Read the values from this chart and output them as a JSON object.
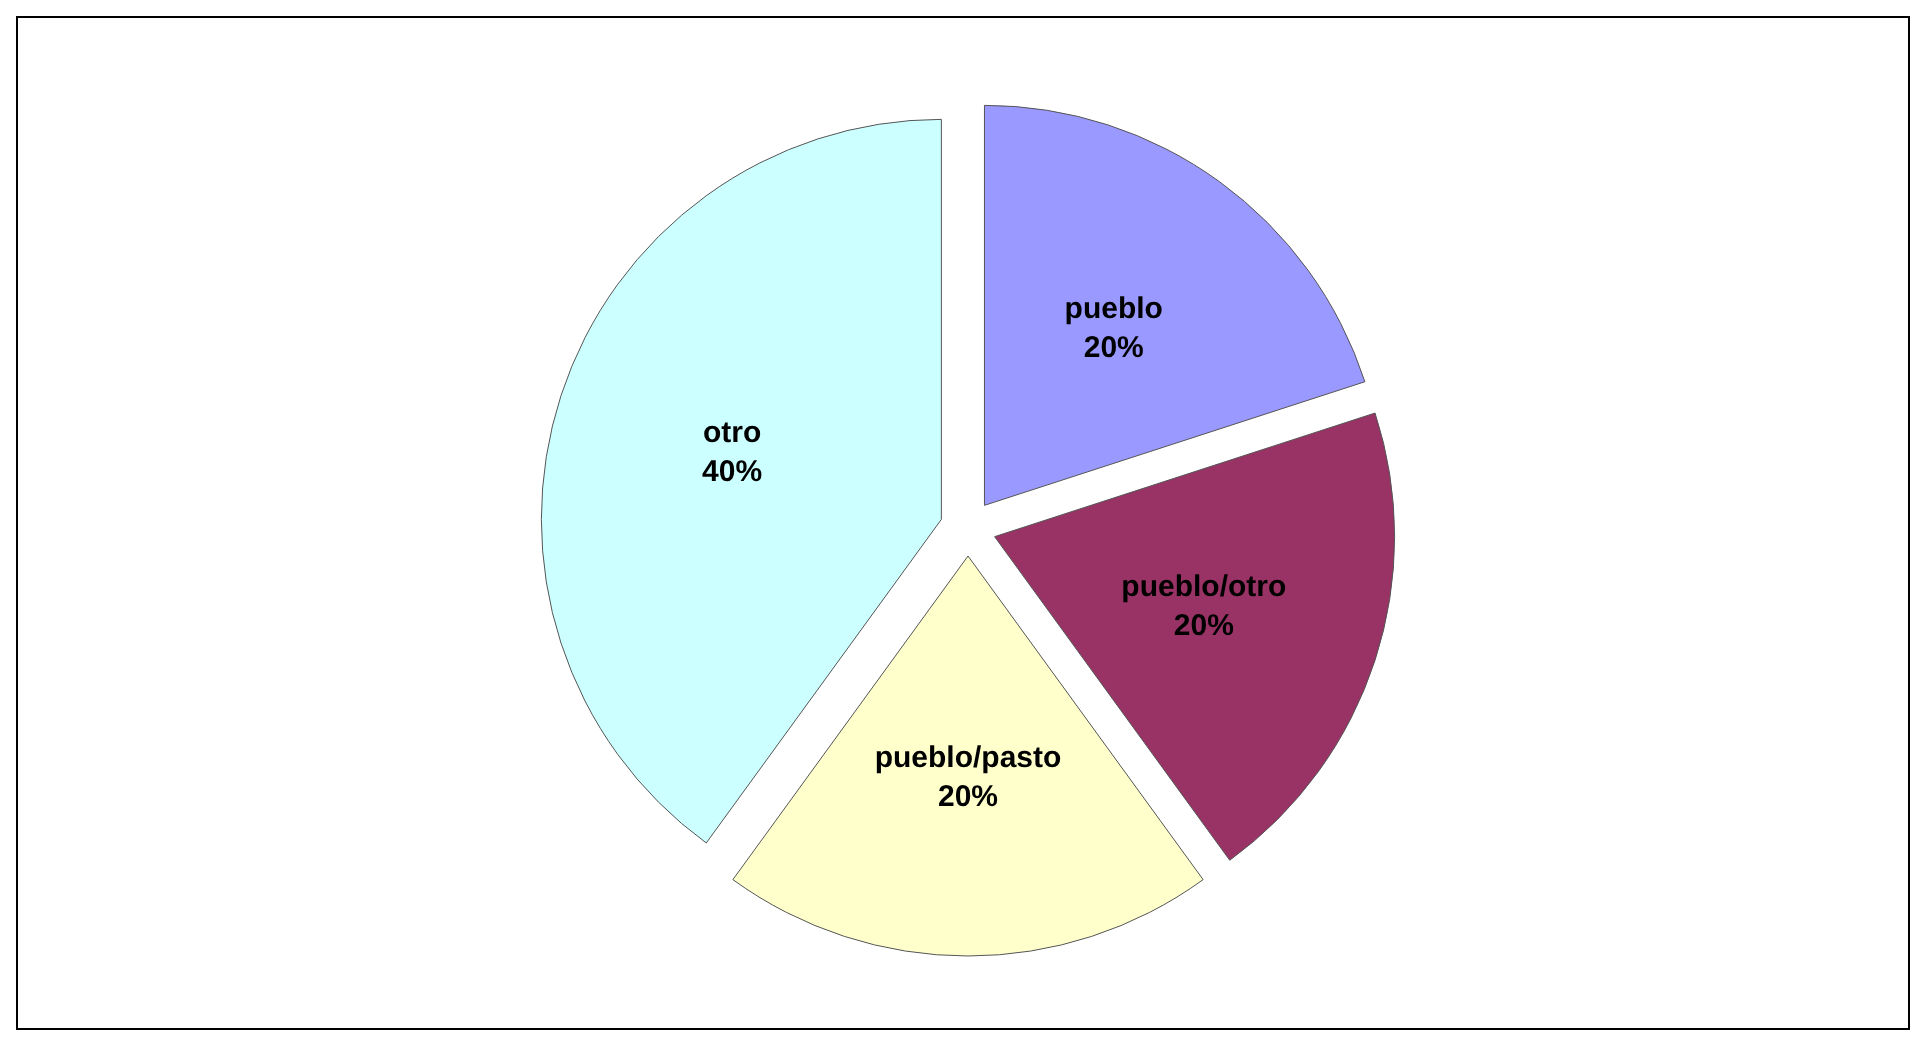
{
  "chart_data": {
    "type": "pie",
    "categories": [
      "pueblo",
      "pueblo/otro",
      "pueblo/pasto",
      "otro"
    ],
    "values": [
      20,
      20,
      20,
      40
    ],
    "colors": [
      "#9999ff",
      "#993366",
      "#ffffcc",
      "#ccffff"
    ],
    "value_labels": [
      "20%",
      "20%",
      "20%",
      "40%"
    ]
  }
}
